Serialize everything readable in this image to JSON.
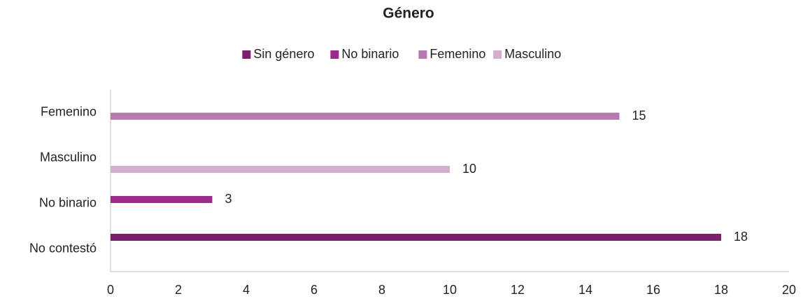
{
  "chart_data": {
    "type": "bar",
    "orientation": "horizontal",
    "title": "Género",
    "categories": [
      "Femenino",
      "Masculino",
      "No binario",
      "No contestó"
    ],
    "series": [
      {
        "name": "Sin género",
        "color": "#7b1f6e",
        "values": [
          null,
          null,
          null,
          18
        ]
      },
      {
        "name": "No binario",
        "color": "#9b2a8a",
        "values": [
          null,
          null,
          3,
          null
        ]
      },
      {
        "name": "Femenino",
        "color": "#b57ab0",
        "values": [
          15,
          null,
          null,
          null
        ]
      },
      {
        "name": "Masculino",
        "color": "#d4aecf",
        "values": [
          null,
          10,
          null,
          null
        ]
      }
    ],
    "xlim": [
      0,
      20
    ],
    "xticks": [
      0,
      2,
      4,
      6,
      8,
      10,
      12,
      14,
      16,
      18,
      20
    ],
    "grid": false,
    "legend": "top"
  }
}
